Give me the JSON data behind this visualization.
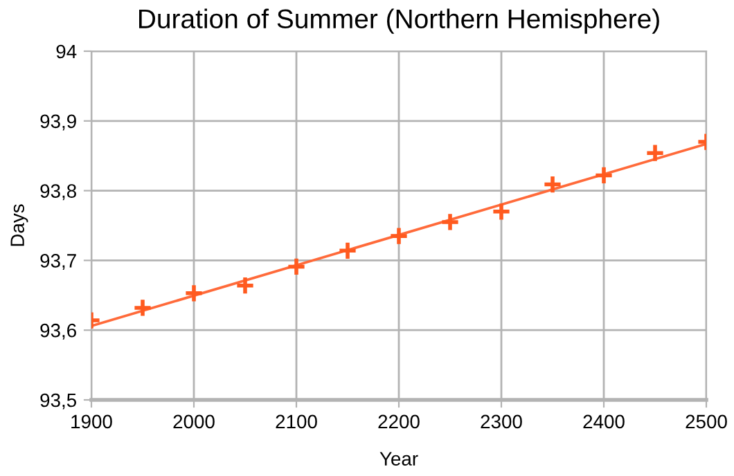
{
  "chart_data": {
    "type": "scatter",
    "title": "Duration of Summer (Northern Hemisphere)",
    "xlabel": "Year",
    "ylabel": "Days",
    "x": [
      1900,
      1950,
      2000,
      2050,
      2100,
      2150,
      2200,
      2250,
      2300,
      2350,
      2400,
      2450,
      2500
    ],
    "series": [
      {
        "color": "#ff5a1f",
        "marker": "cross",
        "values": [
          93.614,
          93.632,
          93.653,
          93.664,
          93.691,
          93.714,
          93.735,
          93.755,
          93.77,
          93.809,
          93.822,
          93.854,
          93.87
        ]
      },
      {
        "type": "line",
        "color": "#ff6a3a",
        "x": [
          1900,
          2500
        ],
        "values": [
          93.606,
          93.867
        ],
        "marker": "none",
        "line_style": "solid"
      }
    ],
    "xlim": [
      1900,
      2500
    ],
    "xticks": [
      1900,
      2000,
      2100,
      2200,
      2300,
      2400,
      2500
    ],
    "ylim": [
      93.5,
      94
    ],
    "yticks": [
      {
        "value": 93.5,
        "label": "93,5"
      },
      {
        "value": 93.6,
        "label": "93,6"
      },
      {
        "value": 93.7,
        "label": "93,7"
      },
      {
        "value": 93.8,
        "label": "93,8"
      },
      {
        "value": 93.9,
        "label": "93,9"
      },
      94
    ],
    "grid": true,
    "legend": false
  }
}
